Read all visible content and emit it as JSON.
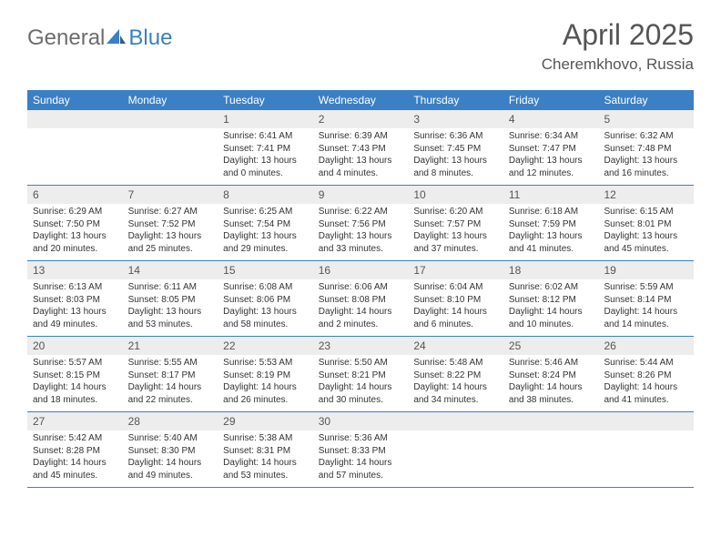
{
  "logo": {
    "text_general": "General",
    "text_blue": "Blue"
  },
  "title": "April 2025",
  "location": "Cheremkhovo, Russia",
  "colors": {
    "header_bg": "#3b7fc4",
    "daynum_bg": "#ededed",
    "text": "#333333",
    "title_text": "#555555",
    "border": "#3b7fc4"
  },
  "day_labels": [
    "Sunday",
    "Monday",
    "Tuesday",
    "Wednesday",
    "Thursday",
    "Friday",
    "Saturday"
  ],
  "weeks": [
    [
      {
        "n": "",
        "sr": "",
        "ss": "",
        "dl1": "",
        "dl2": ""
      },
      {
        "n": "",
        "sr": "",
        "ss": "",
        "dl1": "",
        "dl2": ""
      },
      {
        "n": "1",
        "sr": "Sunrise: 6:41 AM",
        "ss": "Sunset: 7:41 PM",
        "dl1": "Daylight: 13 hours",
        "dl2": "and 0 minutes."
      },
      {
        "n": "2",
        "sr": "Sunrise: 6:39 AM",
        "ss": "Sunset: 7:43 PM",
        "dl1": "Daylight: 13 hours",
        "dl2": "and 4 minutes."
      },
      {
        "n": "3",
        "sr": "Sunrise: 6:36 AM",
        "ss": "Sunset: 7:45 PM",
        "dl1": "Daylight: 13 hours",
        "dl2": "and 8 minutes."
      },
      {
        "n": "4",
        "sr": "Sunrise: 6:34 AM",
        "ss": "Sunset: 7:47 PM",
        "dl1": "Daylight: 13 hours",
        "dl2": "and 12 minutes."
      },
      {
        "n": "5",
        "sr": "Sunrise: 6:32 AM",
        "ss": "Sunset: 7:48 PM",
        "dl1": "Daylight: 13 hours",
        "dl2": "and 16 minutes."
      }
    ],
    [
      {
        "n": "6",
        "sr": "Sunrise: 6:29 AM",
        "ss": "Sunset: 7:50 PM",
        "dl1": "Daylight: 13 hours",
        "dl2": "and 20 minutes."
      },
      {
        "n": "7",
        "sr": "Sunrise: 6:27 AM",
        "ss": "Sunset: 7:52 PM",
        "dl1": "Daylight: 13 hours",
        "dl2": "and 25 minutes."
      },
      {
        "n": "8",
        "sr": "Sunrise: 6:25 AM",
        "ss": "Sunset: 7:54 PM",
        "dl1": "Daylight: 13 hours",
        "dl2": "and 29 minutes."
      },
      {
        "n": "9",
        "sr": "Sunrise: 6:22 AM",
        "ss": "Sunset: 7:56 PM",
        "dl1": "Daylight: 13 hours",
        "dl2": "and 33 minutes."
      },
      {
        "n": "10",
        "sr": "Sunrise: 6:20 AM",
        "ss": "Sunset: 7:57 PM",
        "dl1": "Daylight: 13 hours",
        "dl2": "and 37 minutes."
      },
      {
        "n": "11",
        "sr": "Sunrise: 6:18 AM",
        "ss": "Sunset: 7:59 PM",
        "dl1": "Daylight: 13 hours",
        "dl2": "and 41 minutes."
      },
      {
        "n": "12",
        "sr": "Sunrise: 6:15 AM",
        "ss": "Sunset: 8:01 PM",
        "dl1": "Daylight: 13 hours",
        "dl2": "and 45 minutes."
      }
    ],
    [
      {
        "n": "13",
        "sr": "Sunrise: 6:13 AM",
        "ss": "Sunset: 8:03 PM",
        "dl1": "Daylight: 13 hours",
        "dl2": "and 49 minutes."
      },
      {
        "n": "14",
        "sr": "Sunrise: 6:11 AM",
        "ss": "Sunset: 8:05 PM",
        "dl1": "Daylight: 13 hours",
        "dl2": "and 53 minutes."
      },
      {
        "n": "15",
        "sr": "Sunrise: 6:08 AM",
        "ss": "Sunset: 8:06 PM",
        "dl1": "Daylight: 13 hours",
        "dl2": "and 58 minutes."
      },
      {
        "n": "16",
        "sr": "Sunrise: 6:06 AM",
        "ss": "Sunset: 8:08 PM",
        "dl1": "Daylight: 14 hours",
        "dl2": "and 2 minutes."
      },
      {
        "n": "17",
        "sr": "Sunrise: 6:04 AM",
        "ss": "Sunset: 8:10 PM",
        "dl1": "Daylight: 14 hours",
        "dl2": "and 6 minutes."
      },
      {
        "n": "18",
        "sr": "Sunrise: 6:02 AM",
        "ss": "Sunset: 8:12 PM",
        "dl1": "Daylight: 14 hours",
        "dl2": "and 10 minutes."
      },
      {
        "n": "19",
        "sr": "Sunrise: 5:59 AM",
        "ss": "Sunset: 8:14 PM",
        "dl1": "Daylight: 14 hours",
        "dl2": "and 14 minutes."
      }
    ],
    [
      {
        "n": "20",
        "sr": "Sunrise: 5:57 AM",
        "ss": "Sunset: 8:15 PM",
        "dl1": "Daylight: 14 hours",
        "dl2": "and 18 minutes."
      },
      {
        "n": "21",
        "sr": "Sunrise: 5:55 AM",
        "ss": "Sunset: 8:17 PM",
        "dl1": "Daylight: 14 hours",
        "dl2": "and 22 minutes."
      },
      {
        "n": "22",
        "sr": "Sunrise: 5:53 AM",
        "ss": "Sunset: 8:19 PM",
        "dl1": "Daylight: 14 hours",
        "dl2": "and 26 minutes."
      },
      {
        "n": "23",
        "sr": "Sunrise: 5:50 AM",
        "ss": "Sunset: 8:21 PM",
        "dl1": "Daylight: 14 hours",
        "dl2": "and 30 minutes."
      },
      {
        "n": "24",
        "sr": "Sunrise: 5:48 AM",
        "ss": "Sunset: 8:22 PM",
        "dl1": "Daylight: 14 hours",
        "dl2": "and 34 minutes."
      },
      {
        "n": "25",
        "sr": "Sunrise: 5:46 AM",
        "ss": "Sunset: 8:24 PM",
        "dl1": "Daylight: 14 hours",
        "dl2": "and 38 minutes."
      },
      {
        "n": "26",
        "sr": "Sunrise: 5:44 AM",
        "ss": "Sunset: 8:26 PM",
        "dl1": "Daylight: 14 hours",
        "dl2": "and 41 minutes."
      }
    ],
    [
      {
        "n": "27",
        "sr": "Sunrise: 5:42 AM",
        "ss": "Sunset: 8:28 PM",
        "dl1": "Daylight: 14 hours",
        "dl2": "and 45 minutes."
      },
      {
        "n": "28",
        "sr": "Sunrise: 5:40 AM",
        "ss": "Sunset: 8:30 PM",
        "dl1": "Daylight: 14 hours",
        "dl2": "and 49 minutes."
      },
      {
        "n": "29",
        "sr": "Sunrise: 5:38 AM",
        "ss": "Sunset: 8:31 PM",
        "dl1": "Daylight: 14 hours",
        "dl2": "and 53 minutes."
      },
      {
        "n": "30",
        "sr": "Sunrise: 5:36 AM",
        "ss": "Sunset: 8:33 PM",
        "dl1": "Daylight: 14 hours",
        "dl2": "and 57 minutes."
      },
      {
        "n": "",
        "sr": "",
        "ss": "",
        "dl1": "",
        "dl2": ""
      },
      {
        "n": "",
        "sr": "",
        "ss": "",
        "dl1": "",
        "dl2": ""
      },
      {
        "n": "",
        "sr": "",
        "ss": "",
        "dl1": "",
        "dl2": ""
      }
    ]
  ]
}
